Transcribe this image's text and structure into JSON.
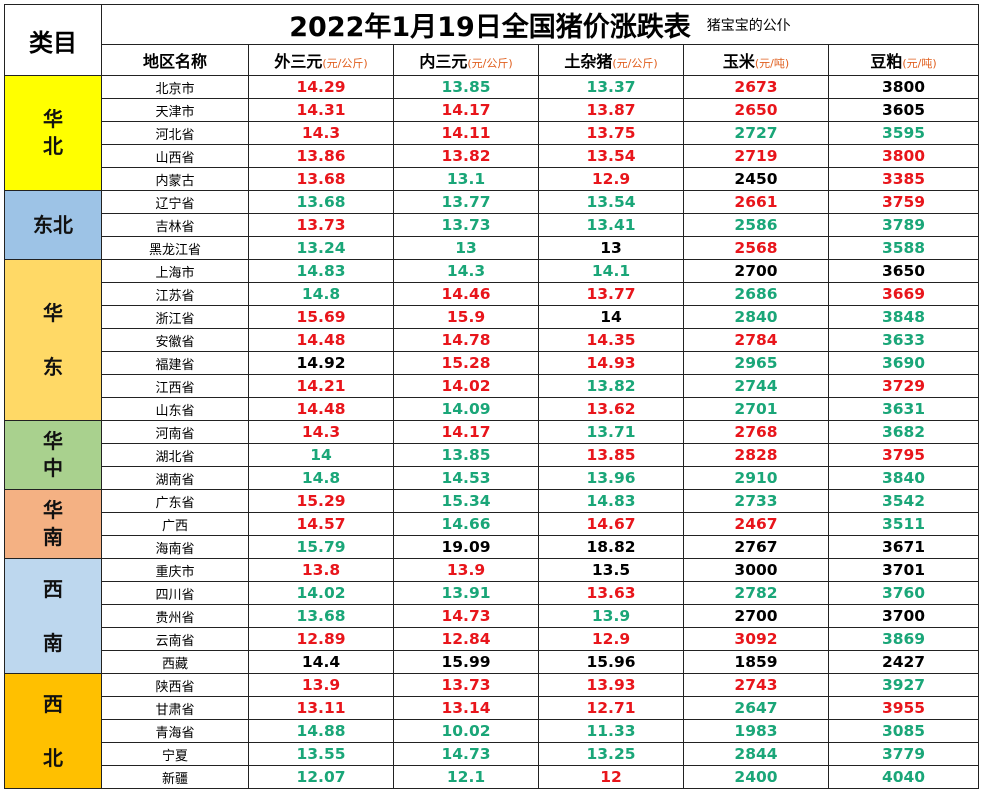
{
  "title": "2022年1月19日全国猪价涨跌表",
  "subtitle": "猪宝宝的公仆",
  "category_header": "类目",
  "columns": [
    {
      "label": "地区名称",
      "unit": ""
    },
    {
      "label": "外三元",
      "unit": "(元/公斤)"
    },
    {
      "label": "内三元",
      "unit": "(元/公斤)"
    },
    {
      "label": "土杂猪",
      "unit": "(元/公斤)"
    },
    {
      "label": "玉米",
      "unit": "(元/吨)"
    },
    {
      "label": "豆粕",
      "unit": "(元/吨)"
    }
  ],
  "value_colors": {
    "up": "#e8151b",
    "down": "#1aa678",
    "flat": "#000000"
  },
  "regions": [
    {
      "label": "华\n北",
      "color": "#ffff00",
      "rows": 5
    },
    {
      "label": "东北",
      "color": "#9dc3e6",
      "rows": 3
    },
    {
      "label": "华\n\n东",
      "color": "#ffd966",
      "rows": 7
    },
    {
      "label": "华\n中",
      "color": "#a9d18e",
      "rows": 3
    },
    {
      "label": "华\n南",
      "color": "#f4b183",
      "rows": 3
    },
    {
      "label": "西\n\n南",
      "color": "#bdd7ee",
      "rows": 5
    },
    {
      "label": "西\n\n北",
      "color": "#ffc000",
      "rows": 5
    }
  ],
  "rows": [
    {
      "name": "北京市",
      "v": [
        [
          "14.29",
          "up"
        ],
        [
          "13.85",
          "down"
        ],
        [
          "13.37",
          "down"
        ],
        [
          "2673",
          "up"
        ],
        [
          "3800",
          "flat"
        ]
      ]
    },
    {
      "name": "天津市",
      "v": [
        [
          "14.31",
          "up"
        ],
        [
          "14.17",
          "up"
        ],
        [
          "13.87",
          "up"
        ],
        [
          "2650",
          "up"
        ],
        [
          "3605",
          "flat"
        ]
      ]
    },
    {
      "name": "河北省",
      "v": [
        [
          "14.3",
          "up"
        ],
        [
          "14.11",
          "up"
        ],
        [
          "13.75",
          "up"
        ],
        [
          "2727",
          "down"
        ],
        [
          "3595",
          "down"
        ]
      ]
    },
    {
      "name": "山西省",
      "v": [
        [
          "13.86",
          "up"
        ],
        [
          "13.82",
          "up"
        ],
        [
          "13.54",
          "up"
        ],
        [
          "2719",
          "up"
        ],
        [
          "3800",
          "up"
        ]
      ]
    },
    {
      "name": "内蒙古",
      "v": [
        [
          "13.68",
          "up"
        ],
        [
          "13.1",
          "down"
        ],
        [
          "12.9",
          "up"
        ],
        [
          "2450",
          "flat"
        ],
        [
          "3385",
          "up"
        ]
      ]
    },
    {
      "name": "辽宁省",
      "v": [
        [
          "13.68",
          "down"
        ],
        [
          "13.77",
          "down"
        ],
        [
          "13.54",
          "down"
        ],
        [
          "2661",
          "up"
        ],
        [
          "3759",
          "up"
        ]
      ]
    },
    {
      "name": "吉林省",
      "v": [
        [
          "13.73",
          "up"
        ],
        [
          "13.73",
          "down"
        ],
        [
          "13.41",
          "down"
        ],
        [
          "2586",
          "down"
        ],
        [
          "3789",
          "down"
        ]
      ]
    },
    {
      "name": "黑龙江省",
      "v": [
        [
          "13.24",
          "down"
        ],
        [
          "13",
          "down"
        ],
        [
          "13",
          "flat"
        ],
        [
          "2568",
          "up"
        ],
        [
          "3588",
          "down"
        ]
      ]
    },
    {
      "name": "上海市",
      "v": [
        [
          "14.83",
          "down"
        ],
        [
          "14.3",
          "down"
        ],
        [
          "14.1",
          "down"
        ],
        [
          "2700",
          "flat"
        ],
        [
          "3650",
          "flat"
        ]
      ]
    },
    {
      "name": "江苏省",
      "v": [
        [
          "14.8",
          "down"
        ],
        [
          "14.46",
          "up"
        ],
        [
          "13.77",
          "up"
        ],
        [
          "2686",
          "down"
        ],
        [
          "3669",
          "up"
        ]
      ]
    },
    {
      "name": "浙江省",
      "v": [
        [
          "15.69",
          "up"
        ],
        [
          "15.9",
          "up"
        ],
        [
          "14",
          "flat"
        ],
        [
          "2840",
          "down"
        ],
        [
          "3848",
          "down"
        ]
      ]
    },
    {
      "name": "安徽省",
      "v": [
        [
          "14.48",
          "up"
        ],
        [
          "14.78",
          "up"
        ],
        [
          "14.35",
          "up"
        ],
        [
          "2784",
          "up"
        ],
        [
          "3633",
          "down"
        ]
      ]
    },
    {
      "name": "福建省",
      "v": [
        [
          "14.92",
          "flat"
        ],
        [
          "15.28",
          "up"
        ],
        [
          "14.93",
          "up"
        ],
        [
          "2965",
          "down"
        ],
        [
          "3690",
          "down"
        ]
      ]
    },
    {
      "name": "江西省",
      "v": [
        [
          "14.21",
          "up"
        ],
        [
          "14.02",
          "up"
        ],
        [
          "13.82",
          "down"
        ],
        [
          "2744",
          "down"
        ],
        [
          "3729",
          "up"
        ]
      ]
    },
    {
      "name": "山东省",
      "v": [
        [
          "14.48",
          "up"
        ],
        [
          "14.09",
          "down"
        ],
        [
          "13.62",
          "up"
        ],
        [
          "2701",
          "down"
        ],
        [
          "3631",
          "down"
        ]
      ]
    },
    {
      "name": "河南省",
      "v": [
        [
          "14.3",
          "up"
        ],
        [
          "14.17",
          "up"
        ],
        [
          "13.71",
          "down"
        ],
        [
          "2768",
          "up"
        ],
        [
          "3682",
          "down"
        ]
      ]
    },
    {
      "name": "湖北省",
      "v": [
        [
          "14",
          "down"
        ],
        [
          "13.85",
          "down"
        ],
        [
          "13.85",
          "up"
        ],
        [
          "2828",
          "up"
        ],
        [
          "3795",
          "up"
        ]
      ]
    },
    {
      "name": "湖南省",
      "v": [
        [
          "14.8",
          "down"
        ],
        [
          "14.53",
          "down"
        ],
        [
          "13.96",
          "down"
        ],
        [
          "2910",
          "down"
        ],
        [
          "3840",
          "down"
        ]
      ]
    },
    {
      "name": "广东省",
      "v": [
        [
          "15.29",
          "up"
        ],
        [
          "15.34",
          "down"
        ],
        [
          "14.83",
          "down"
        ],
        [
          "2733",
          "down"
        ],
        [
          "3542",
          "down"
        ]
      ]
    },
    {
      "name": "广西",
      "v": [
        [
          "14.57",
          "up"
        ],
        [
          "14.66",
          "down"
        ],
        [
          "14.67",
          "up"
        ],
        [
          "2467",
          "up"
        ],
        [
          "3511",
          "down"
        ]
      ]
    },
    {
      "name": "海南省",
      "v": [
        [
          "15.79",
          "down"
        ],
        [
          "19.09",
          "flat"
        ],
        [
          "18.82",
          "flat"
        ],
        [
          "2767",
          "flat"
        ],
        [
          "3671",
          "flat"
        ]
      ]
    },
    {
      "name": "重庆市",
      "v": [
        [
          "13.8",
          "up"
        ],
        [
          "13.9",
          "up"
        ],
        [
          "13.5",
          "flat"
        ],
        [
          "3000",
          "flat"
        ],
        [
          "3701",
          "flat"
        ]
      ]
    },
    {
      "name": "四川省",
      "v": [
        [
          "14.02",
          "down"
        ],
        [
          "13.91",
          "down"
        ],
        [
          "13.63",
          "up"
        ],
        [
          "2782",
          "down"
        ],
        [
          "3760",
          "down"
        ]
      ]
    },
    {
      "name": "贵州省",
      "v": [
        [
          "13.68",
          "down"
        ],
        [
          "14.73",
          "up"
        ],
        [
          "13.9",
          "down"
        ],
        [
          "2700",
          "flat"
        ],
        [
          "3700",
          "flat"
        ]
      ]
    },
    {
      "name": "云南省",
      "v": [
        [
          "12.89",
          "up"
        ],
        [
          "12.84",
          "up"
        ],
        [
          "12.9",
          "up"
        ],
        [
          "3092",
          "up"
        ],
        [
          "3869",
          "down"
        ]
      ]
    },
    {
      "name": "西藏",
      "v": [
        [
          "14.4",
          "flat"
        ],
        [
          "15.99",
          "flat"
        ],
        [
          "15.96",
          "flat"
        ],
        [
          "1859",
          "flat"
        ],
        [
          "2427",
          "flat"
        ]
      ]
    },
    {
      "name": "陕西省",
      "v": [
        [
          "13.9",
          "up"
        ],
        [
          "13.73",
          "up"
        ],
        [
          "13.93",
          "up"
        ],
        [
          "2743",
          "up"
        ],
        [
          "3927",
          "down"
        ]
      ]
    },
    {
      "name": "甘肃省",
      "v": [
        [
          "13.11",
          "up"
        ],
        [
          "13.14",
          "up"
        ],
        [
          "12.71",
          "up"
        ],
        [
          "2647",
          "down"
        ],
        [
          "3955",
          "up"
        ]
      ]
    },
    {
      "name": "青海省",
      "v": [
        [
          "14.88",
          "down"
        ],
        [
          "10.02",
          "down"
        ],
        [
          "11.33",
          "down"
        ],
        [
          "1983",
          "down"
        ],
        [
          "3085",
          "down"
        ]
      ]
    },
    {
      "name": "宁夏",
      "v": [
        [
          "13.55",
          "down"
        ],
        [
          "14.73",
          "down"
        ],
        [
          "13.25",
          "down"
        ],
        [
          "2844",
          "down"
        ],
        [
          "3779",
          "down"
        ]
      ]
    },
    {
      "name": "新疆",
      "v": [
        [
          "12.07",
          "down"
        ],
        [
          "12.1",
          "down"
        ],
        [
          "12",
          "up"
        ],
        [
          "2400",
          "down"
        ],
        [
          "4040",
          "down"
        ]
      ]
    }
  ]
}
